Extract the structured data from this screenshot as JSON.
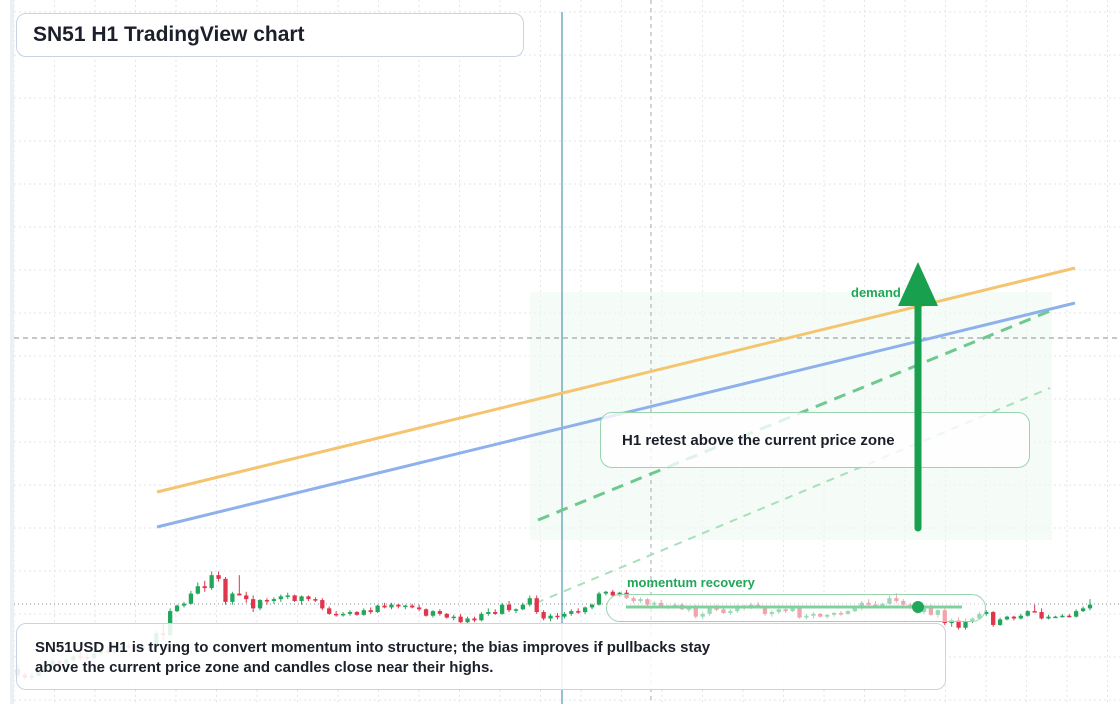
{
  "title": "SN51 H1 TradingView chart",
  "summary": "SN51USD H1 is trying to convert momentum into structure; the bias improves if pullbacks stay above the current price zone and candles close near their highs.",
  "colors": {
    "bull": "#22a65a",
    "bear": "#e0354b",
    "trend_orange": "#f5c46f",
    "trend_blue": "#8eb1ec",
    "arrow": "#18a04f",
    "grid": "#e3e6eb"
  },
  "chart_data": {
    "type": "candlestick",
    "timeframe": "H1",
    "annotations": {
      "callout": "H1 retest above the current price zone",
      "demand_label": "demand side",
      "momentum_label": "momentum recovery"
    },
    "candles": [
      [
        0.9,
        0.95,
        0.81,
        0.84
      ],
      [
        0.84,
        0.86,
        0.79,
        0.81
      ],
      [
        0.81,
        0.86,
        0.78,
        0.83
      ],
      [
        0.83,
        0.93,
        0.82,
        0.9
      ],
      [
        0.9,
        1.0,
        0.88,
        0.95
      ],
      [
        0.95,
        1.02,
        0.93,
        0.99
      ],
      [
        0.99,
        1.0,
        0.94,
        0.96
      ],
      [
        0.96,
        1.02,
        0.95,
        1.0
      ],
      [
        1.0,
        1.06,
        0.97,
        1.04
      ],
      [
        1.04,
        1.08,
        1.0,
        1.03
      ],
      [
        1.03,
        1.06,
        1.0,
        1.02
      ],
      [
        1.02,
        1.08,
        1.01,
        1.07
      ],
      [
        1.07,
        1.12,
        1.05,
        1.1
      ],
      [
        1.1,
        1.14,
        1.07,
        1.08
      ],
      [
        1.08,
        1.14,
        1.06,
        1.12
      ],
      [
        1.12,
        1.16,
        1.1,
        1.15
      ],
      [
        1.15,
        1.18,
        1.12,
        1.14
      ],
      [
        1.14,
        1.16,
        1.09,
        1.12
      ],
      [
        1.12,
        1.16,
        1.1,
        1.15
      ],
      [
        1.15,
        1.19,
        1.13,
        1.17
      ],
      [
        1.17,
        1.32,
        1.15,
        1.29
      ],
      [
        1.29,
        1.4,
        1.22,
        1.27
      ],
      [
        1.27,
        1.56,
        1.26,
        1.53
      ],
      [
        1.53,
        1.6,
        1.52,
        1.59
      ],
      [
        1.59,
        1.63,
        1.57,
        1.61
      ],
      [
        1.61,
        1.75,
        1.6,
        1.72
      ],
      [
        1.72,
        1.84,
        1.71,
        1.8
      ],
      [
        1.8,
        1.86,
        1.74,
        1.78
      ],
      [
        1.78,
        1.96,
        1.76,
        1.92
      ],
      [
        1.92,
        1.96,
        1.85,
        1.88
      ],
      [
        1.88,
        1.9,
        1.6,
        1.63
      ],
      [
        1.63,
        1.74,
        1.6,
        1.72
      ],
      [
        1.72,
        1.92,
        1.7,
        1.7
      ],
      [
        1.7,
        1.74,
        1.62,
        1.66
      ],
      [
        1.66,
        1.7,
        1.52,
        1.56
      ],
      [
        1.56,
        1.66,
        1.54,
        1.65
      ],
      [
        1.65,
        1.67,
        1.6,
        1.64
      ],
      [
        1.64,
        1.68,
        1.61,
        1.66
      ],
      [
        1.66,
        1.71,
        1.63,
        1.69
      ],
      [
        1.69,
        1.73,
        1.66,
        1.7
      ],
      [
        1.7,
        1.71,
        1.63,
        1.64
      ],
      [
        1.64,
        1.7,
        1.6,
        1.69
      ],
      [
        1.69,
        1.7,
        1.64,
        1.66
      ],
      [
        1.66,
        1.68,
        1.63,
        1.65
      ],
      [
        1.65,
        1.67,
        1.54,
        1.56
      ],
      [
        1.56,
        1.58,
        1.49,
        1.5
      ],
      [
        1.5,
        1.53,
        1.47,
        1.49
      ],
      [
        1.49,
        1.52,
        1.47,
        1.5
      ],
      [
        1.5,
        1.54,
        1.48,
        1.52
      ],
      [
        1.52,
        1.53,
        1.48,
        1.49
      ],
      [
        1.49,
        1.56,
        1.48,
        1.54
      ],
      [
        1.54,
        1.57,
        1.5,
        1.52
      ],
      [
        1.52,
        1.6,
        1.51,
        1.59
      ],
      [
        1.59,
        1.62,
        1.56,
        1.57
      ],
      [
        1.57,
        1.62,
        1.55,
        1.6
      ],
      [
        1.6,
        1.61,
        1.56,
        1.58
      ],
      [
        1.58,
        1.6,
        1.55,
        1.59
      ],
      [
        1.59,
        1.61,
        1.56,
        1.57
      ],
      [
        1.57,
        1.6,
        1.53,
        1.55
      ],
      [
        1.55,
        1.56,
        1.47,
        1.48
      ],
      [
        1.48,
        1.54,
        1.46,
        1.53
      ],
      [
        1.53,
        1.55,
        1.48,
        1.5
      ],
      [
        1.5,
        1.51,
        1.45,
        1.46
      ],
      [
        1.46,
        1.49,
        1.43,
        1.47
      ],
      [
        1.47,
        1.5,
        1.39,
        1.41
      ],
      [
        1.41,
        1.47,
        1.38,
        1.45
      ],
      [
        1.45,
        1.47,
        1.41,
        1.43
      ],
      [
        1.43,
        1.52,
        1.42,
        1.5
      ],
      [
        1.5,
        1.56,
        1.48,
        1.52
      ],
      [
        1.52,
        1.55,
        1.49,
        1.5
      ],
      [
        1.5,
        1.62,
        1.49,
        1.6
      ],
      [
        1.6,
        1.64,
        1.52,
        1.54
      ],
      [
        1.54,
        1.56,
        1.51,
        1.55
      ],
      [
        1.55,
        1.62,
        1.54,
        1.6
      ],
      [
        1.6,
        1.7,
        1.58,
        1.67
      ],
      [
        1.67,
        1.7,
        1.5,
        1.52
      ],
      [
        1.52,
        1.54,
        1.43,
        1.45
      ],
      [
        1.45,
        1.5,
        1.42,
        1.48
      ],
      [
        1.48,
        1.51,
        1.44,
        1.47
      ],
      [
        1.47,
        1.52,
        1.45,
        1.5
      ],
      [
        1.5,
        1.55,
        1.48,
        1.53
      ],
      [
        1.53,
        1.56,
        1.5,
        1.52
      ],
      [
        1.52,
        1.58,
        1.5,
        1.57
      ],
      [
        1.57,
        1.61,
        1.55,
        1.6
      ],
      [
        1.6,
        1.74,
        1.59,
        1.72
      ],
      [
        1.72,
        1.75,
        1.7,
        1.74
      ],
      [
        1.74,
        1.76,
        1.69,
        1.7
      ],
      [
        1.7,
        1.74,
        1.68,
        1.73
      ],
      [
        1.73,
        1.76,
        1.66,
        1.67
      ],
      [
        1.67,
        1.69,
        1.62,
        1.64
      ],
      [
        1.64,
        1.68,
        1.62,
        1.66
      ],
      [
        1.66,
        1.67,
        1.58,
        1.6
      ],
      [
        1.6,
        1.64,
        1.58,
        1.62
      ],
      [
        1.62,
        1.65,
        1.56,
        1.57
      ],
      [
        1.57,
        1.6,
        1.55,
        1.58
      ],
      [
        1.58,
        1.62,
        1.56,
        1.6
      ],
      [
        1.6,
        1.62,
        1.54,
        1.55
      ],
      [
        1.55,
        1.58,
        1.52,
        1.56
      ],
      [
        1.56,
        1.6,
        1.45,
        1.47
      ],
      [
        1.47,
        1.52,
        1.44,
        1.5
      ],
      [
        1.5,
        1.58,
        1.48,
        1.56
      ],
      [
        1.56,
        1.6,
        1.53,
        1.55
      ],
      [
        1.55,
        1.58,
        1.5,
        1.51
      ],
      [
        1.51,
        1.55,
        1.49,
        1.53
      ],
      [
        1.53,
        1.6,
        1.51,
        1.58
      ],
      [
        1.58,
        1.6,
        1.54,
        1.56
      ],
      [
        1.56,
        1.62,
        1.55,
        1.6
      ],
      [
        1.6,
        1.63,
        1.56,
        1.57
      ],
      [
        1.57,
        1.58,
        1.48,
        1.5
      ],
      [
        1.5,
        1.54,
        1.47,
        1.52
      ],
      [
        1.52,
        1.56,
        1.5,
        1.55
      ],
      [
        1.55,
        1.57,
        1.51,
        1.53
      ],
      [
        1.53,
        1.57,
        1.52,
        1.56
      ],
      [
        1.56,
        1.58,
        1.45,
        1.46
      ],
      [
        1.46,
        1.5,
        1.44,
        1.48
      ],
      [
        1.48,
        1.52,
        1.45,
        1.5
      ],
      [
        1.5,
        1.51,
        1.46,
        1.47
      ],
      [
        1.47,
        1.5,
        1.45,
        1.49
      ],
      [
        1.49,
        1.52,
        1.47,
        1.51
      ],
      [
        1.51,
        1.53,
        1.48,
        1.5
      ],
      [
        1.5,
        1.54,
        1.49,
        1.53
      ],
      [
        1.53,
        1.58,
        1.52,
        1.56
      ],
      [
        1.56,
        1.64,
        1.54,
        1.62
      ],
      [
        1.62,
        1.66,
        1.58,
        1.6
      ],
      [
        1.6,
        1.64,
        1.57,
        1.58
      ],
      [
        1.58,
        1.62,
        1.56,
        1.61
      ],
      [
        1.61,
        1.7,
        1.6,
        1.67
      ],
      [
        1.67,
        1.72,
        1.62,
        1.64
      ],
      [
        1.64,
        1.66,
        1.58,
        1.6
      ],
      [
        1.6,
        1.62,
        1.55,
        1.57
      ],
      [
        1.57,
        1.58,
        1.5,
        1.52
      ],
      [
        1.52,
        1.6,
        1.5,
        1.58
      ],
      [
        1.58,
        1.6,
        1.48,
        1.49
      ],
      [
        1.49,
        1.55,
        1.46,
        1.54
      ],
      [
        1.54,
        1.56,
        1.38,
        1.4
      ],
      [
        1.4,
        1.45,
        1.36,
        1.43
      ],
      [
        1.43,
        1.46,
        1.33,
        1.35
      ],
      [
        1.35,
        1.45,
        1.33,
        1.42
      ],
      [
        1.42,
        1.46,
        1.4,
        1.45
      ],
      [
        1.45,
        1.52,
        1.44,
        1.5
      ],
      [
        1.5,
        1.54,
        1.48,
        1.52
      ],
      [
        1.52,
        1.53,
        1.36,
        1.38
      ],
      [
        1.38,
        1.46,
        1.37,
        1.44
      ],
      [
        1.44,
        1.48,
        1.43,
        1.47
      ],
      [
        1.47,
        1.48,
        1.43,
        1.45
      ],
      [
        1.45,
        1.5,
        1.44,
        1.48
      ],
      [
        1.48,
        1.54,
        1.47,
        1.53
      ],
      [
        1.53,
        1.6,
        1.52,
        1.52
      ],
      [
        1.52,
        1.56,
        1.44,
        1.45
      ],
      [
        1.45,
        1.49,
        1.44,
        1.47
      ],
      [
        1.47,
        1.48,
        1.46,
        1.47
      ],
      [
        1.47,
        1.5,
        1.46,
        1.48
      ],
      [
        1.48,
        1.5,
        1.46,
        1.47
      ],
      [
        1.47,
        1.55,
        1.46,
        1.53
      ],
      [
        1.53,
        1.58,
        1.52,
        1.56
      ],
      [
        1.56,
        1.66,
        1.54,
        1.6
      ]
    ]
  }
}
